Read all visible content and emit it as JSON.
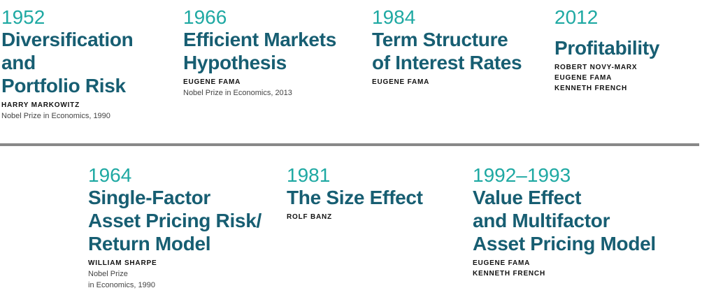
{
  "top": [
    {
      "year": "1952",
      "title": [
        "Diversification",
        "and",
        "Portfolio Risk"
      ],
      "names": [
        "HARRY MARKOWITZ"
      ],
      "note": [
        "Nobel Prize in Economics, 1990"
      ]
    },
    {
      "year": "1966",
      "title": [
        "Efficient Markets",
        "Hypothesis"
      ],
      "names": [
        "EUGENE FAMA"
      ],
      "note": [
        "Nobel Prize in Economics, 2013"
      ]
    },
    {
      "year": "1984",
      "title": [
        "Term Structure",
        "of Interest Rates"
      ],
      "names": [
        "EUGENE FAMA"
      ]
    },
    {
      "year": "2012",
      "title": [
        "Profitability"
      ],
      "names": [
        "ROBERT NOVY-MARX",
        "EUGENE FAMA",
        "KENNETH FRENCH"
      ]
    }
  ],
  "bottom": [
    {
      "year": "1964",
      "title": [
        "Single-Factor",
        "Asset Pricing Risk/",
        "Return Model"
      ],
      "names": [
        "WILLIAM SHARPE"
      ],
      "note": [
        "Nobel Prize",
        "in Economics, 1990"
      ]
    },
    {
      "year": "1981",
      "title": [
        "The Size Effect"
      ],
      "names": [
        "ROLF BANZ"
      ]
    },
    {
      "year": "1992–1993",
      "title": [
        "Value Effect",
        "and Multifactor",
        "Asset Pricing Model"
      ],
      "names": [
        "EUGENE FAMA",
        "KENNETH FRENCH"
      ]
    }
  ]
}
